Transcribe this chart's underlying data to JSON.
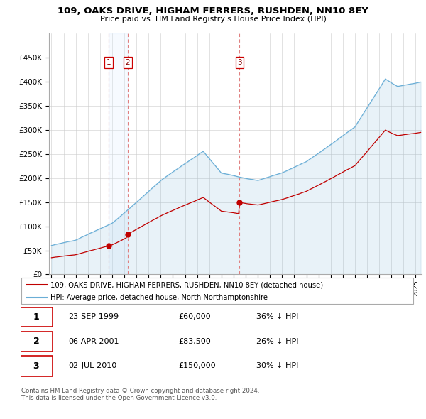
{
  "title": "109, OAKS DRIVE, HIGHAM FERRERS, RUSHDEN, NN10 8EY",
  "subtitle": "Price paid vs. HM Land Registry's House Price Index (HPI)",
  "ylim": [
    0,
    500000
  ],
  "yticks": [
    0,
    50000,
    100000,
    150000,
    200000,
    250000,
    300000,
    350000,
    400000,
    450000
  ],
  "ytick_labels": [
    "£0",
    "£50K",
    "£100K",
    "£150K",
    "£200K",
    "£250K",
    "£300K",
    "£350K",
    "£400K",
    "£450K"
  ],
  "hpi_color": "#6aaed6",
  "hpi_fill_color": "#d6e8f5",
  "price_color": "#c00000",
  "vline_color": "#e08080",
  "shade_color": "#ddeeff",
  "background_color": "#ffffff",
  "grid_color": "#cccccc",
  "sale1_year": 1999.73,
  "sale1_price": 60000,
  "sale2_year": 2001.27,
  "sale2_price": 83500,
  "sale3_year": 2010.5,
  "sale3_price": 150000,
  "sales": [
    {
      "label": "1",
      "date_year": 1999.73,
      "price": 60000,
      "date_str": "23-SEP-1999",
      "pct": "36%"
    },
    {
      "label": "2",
      "date_year": 2001.27,
      "price": 83500,
      "date_str": "06-APR-2001",
      "pct": "26%"
    },
    {
      "label": "3",
      "date_year": 2010.5,
      "price": 150000,
      "date_str": "02-JUL-2010",
      "pct": "30%"
    }
  ],
  "legend_label_red": "109, OAKS DRIVE, HIGHAM FERRERS, RUSHDEN, NN10 8EY (detached house)",
  "legend_label_blue": "HPI: Average price, detached house, North Northamptonshire",
  "footnote": "Contains HM Land Registry data © Crown copyright and database right 2024.\nThis data is licensed under the Open Government Licence v3.0.",
  "table_rows": [
    [
      "1",
      "23-SEP-1999",
      "£60,000",
      "36% ↓ HPI"
    ],
    [
      "2",
      "06-APR-2001",
      "£83,500",
      "26% ↓ HPI"
    ],
    [
      "3",
      "02-JUL-2010",
      "£150,000",
      "30% ↓ HPI"
    ]
  ]
}
